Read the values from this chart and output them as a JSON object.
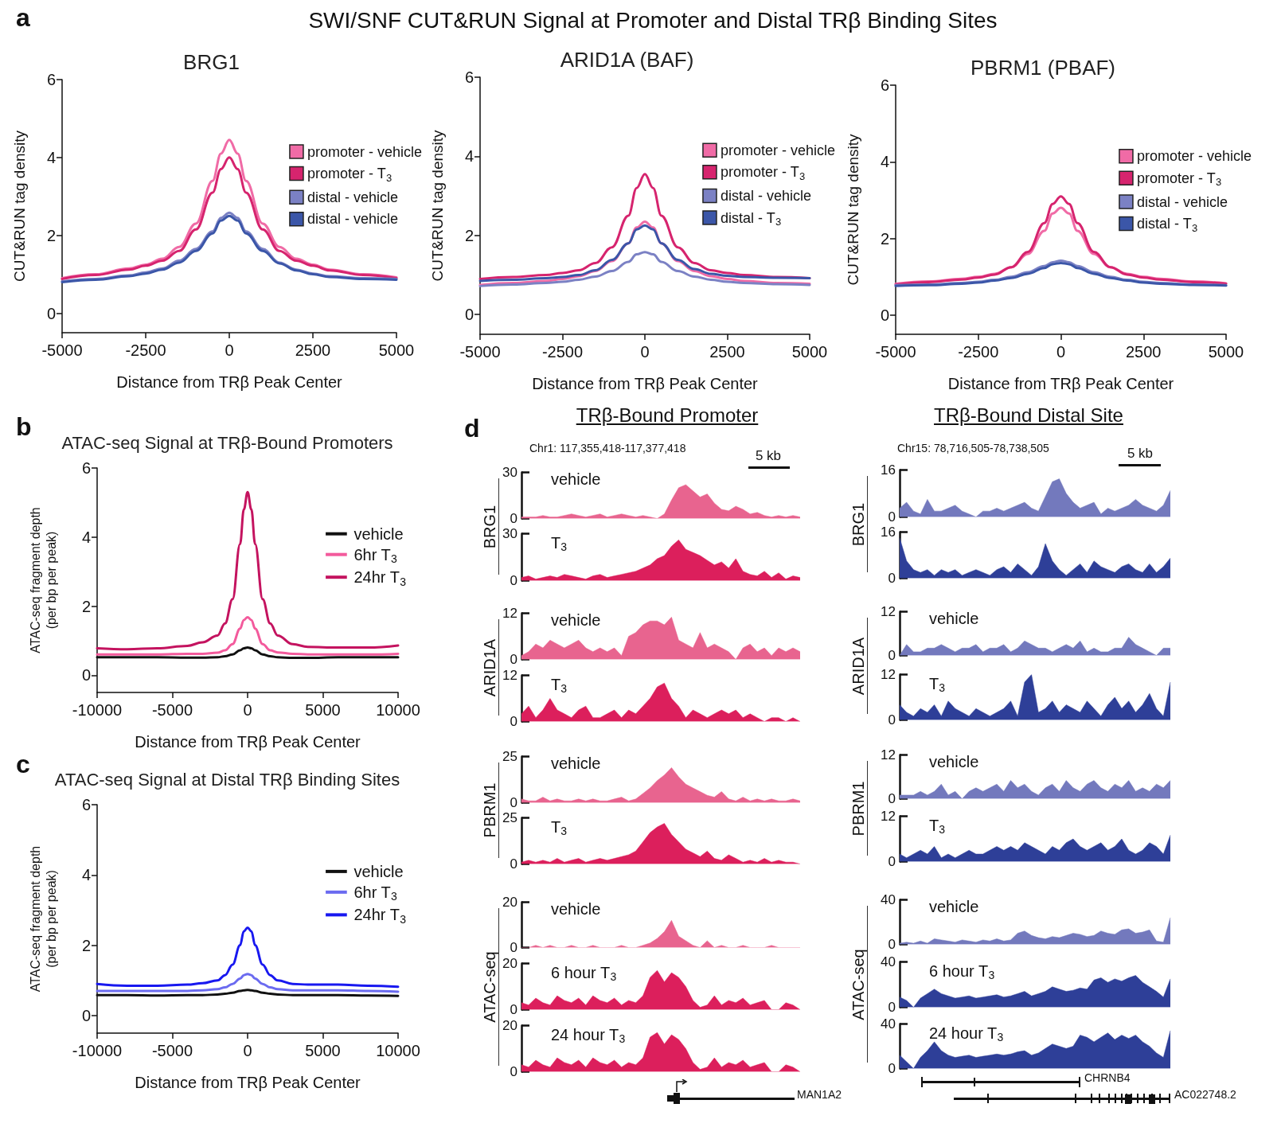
{
  "chart_data": [
    {
      "type": "line",
      "title": "BRG1",
      "xlabel": "Distance from TRβ Peak Center",
      "ylabel": "CUT&RUN tag density",
      "annotations": [
        "a",
        "SWI/SNF CUT&RUN Signal at Promoter and Distal TRβ Binding Sites"
      ],
      "legend": "right",
      "xlim": [
        -5000,
        5000
      ],
      "xticks": [
        -5000,
        -2500,
        0,
        2500,
        5000
      ],
      "ylim": [
        -0.5,
        6
      ],
      "yticks": [
        0,
        2,
        4,
        6
      ],
      "x": [
        -5000,
        -4000,
        -3000,
        -2500,
        -2000,
        -1500,
        -1000,
        -500,
        -250,
        0,
        250,
        500,
        1000,
        1500,
        2000,
        2500,
        3000,
        4000,
        5000
      ],
      "series": [
        {
          "name": "promoter - vehicle",
          "color": "#f06ba6",
          "values": [
            0.9,
            1.0,
            1.15,
            1.25,
            1.4,
            1.7,
            2.3,
            3.4,
            4.1,
            4.45,
            4.1,
            3.4,
            2.3,
            1.7,
            1.4,
            1.25,
            1.12,
            1.0,
            0.92
          ]
        },
        {
          "name": "promoter - T$_{3}$",
          "color": "#d6246e",
          "values": [
            0.88,
            0.98,
            1.12,
            1.22,
            1.35,
            1.6,
            2.15,
            3.1,
            3.7,
            4.0,
            3.7,
            3.1,
            2.15,
            1.6,
            1.35,
            1.22,
            1.1,
            0.98,
            0.9
          ]
        },
        {
          "name": "distal - vehicle",
          "color": "#7b81c4",
          "values": [
            0.82,
            0.88,
            0.97,
            1.05,
            1.15,
            1.35,
            1.65,
            2.1,
            2.45,
            2.58,
            2.45,
            2.1,
            1.65,
            1.3,
            1.12,
            1.02,
            0.95,
            0.9,
            0.88
          ]
        },
        {
          "name": "distal - vehicle",
          "color": "#3b56a8",
          "values": [
            0.8,
            0.86,
            0.95,
            1.02,
            1.12,
            1.3,
            1.6,
            2.05,
            2.38,
            2.5,
            2.38,
            2.05,
            1.6,
            1.28,
            1.1,
            1.0,
            0.93,
            0.88,
            0.86
          ]
        }
      ]
    },
    {
      "type": "line",
      "title": "ARID1A (BAF)",
      "xlabel": "Distance from TRβ Peak Center",
      "ylabel": "CUT&RUN tag density",
      "legend": "right",
      "xlim": [
        -5000,
        5000
      ],
      "xticks": [
        -5000,
        -2500,
        0,
        2500,
        5000
      ],
      "ylim": [
        -0.5,
        6
      ],
      "yticks": [
        0,
        2,
        4,
        6
      ],
      "x": [
        -5000,
        -4000,
        -3000,
        -2500,
        -2000,
        -1500,
        -1000,
        -500,
        -250,
        0,
        250,
        500,
        1000,
        1500,
        2000,
        2500,
        3000,
        4000,
        5000
      ],
      "series": [
        {
          "name": "promoter - vehicle",
          "color": "#f06ba6",
          "values": [
            0.75,
            0.8,
            0.85,
            0.9,
            0.97,
            1.1,
            1.35,
            1.8,
            2.2,
            2.35,
            2.2,
            1.8,
            1.35,
            1.1,
            0.97,
            0.9,
            0.85,
            0.8,
            0.78
          ]
        },
        {
          "name": "promoter - T$_{3}$",
          "color": "#d6246e",
          "values": [
            0.9,
            0.95,
            1.0,
            1.05,
            1.12,
            1.3,
            1.7,
            2.5,
            3.2,
            3.55,
            3.2,
            2.5,
            1.7,
            1.3,
            1.12,
            1.05,
            1.0,
            0.95,
            0.92
          ]
        },
        {
          "name": "distal - vehicle",
          "color": "#7b81c4",
          "values": [
            0.72,
            0.76,
            0.8,
            0.83,
            0.88,
            0.96,
            1.1,
            1.33,
            1.52,
            1.58,
            1.52,
            1.33,
            1.1,
            0.96,
            0.88,
            0.83,
            0.8,
            0.77,
            0.75
          ]
        },
        {
          "name": "distal - T$_{3}$",
          "color": "#3b56a8",
          "values": [
            0.85,
            0.88,
            0.92,
            0.95,
            1.0,
            1.12,
            1.38,
            1.8,
            2.15,
            2.25,
            2.15,
            1.8,
            1.38,
            1.15,
            1.03,
            0.98,
            0.95,
            0.93,
            0.92
          ]
        }
      ]
    },
    {
      "type": "line",
      "title": "PBRM1 (PBAF)",
      "xlabel": "Distance from TRβ Peak Center",
      "ylabel": "CUT&RUN tag density",
      "legend": "right",
      "xlim": [
        -5000,
        5000
      ],
      "xticks": [
        -5000,
        -2500,
        0,
        2500,
        5000
      ],
      "ylim": [
        -0.5,
        6
      ],
      "yticks": [
        0,
        2,
        4,
        6
      ],
      "x": [
        -5000,
        -4000,
        -3000,
        -2500,
        -2000,
        -1500,
        -1000,
        -500,
        -250,
        0,
        250,
        500,
        1000,
        1500,
        2000,
        2500,
        3000,
        4000,
        5000
      ],
      "series": [
        {
          "name": "promoter - vehicle",
          "color": "#f06ba6",
          "values": [
            0.82,
            0.88,
            0.95,
            1.0,
            1.08,
            1.25,
            1.6,
            2.2,
            2.65,
            2.8,
            2.65,
            2.2,
            1.6,
            1.25,
            1.08,
            1.0,
            0.95,
            0.88,
            0.83
          ]
        },
        {
          "name": "promoter - T$_{3}$",
          "color": "#d6246e",
          "values": [
            0.8,
            0.86,
            0.93,
            0.98,
            1.06,
            1.25,
            1.65,
            2.4,
            2.9,
            3.1,
            2.9,
            2.4,
            1.65,
            1.25,
            1.06,
            0.98,
            0.93,
            0.86,
            0.82
          ]
        },
        {
          "name": "distal - vehicle",
          "color": "#7b81c4",
          "values": [
            0.78,
            0.8,
            0.84,
            0.87,
            0.92,
            1.0,
            1.12,
            1.28,
            1.38,
            1.42,
            1.38,
            1.28,
            1.12,
            1.0,
            0.92,
            0.87,
            0.84,
            0.8,
            0.78
          ]
        },
        {
          "name": "distal - T$_{3}$",
          "color": "#3b56a8",
          "values": [
            0.76,
            0.78,
            0.82,
            0.85,
            0.9,
            0.97,
            1.08,
            1.23,
            1.33,
            1.36,
            1.33,
            1.23,
            1.08,
            0.97,
            0.9,
            0.85,
            0.82,
            0.79,
            0.77
          ]
        }
      ]
    },
    {
      "type": "line",
      "title": "ATAC-seq Signal at TRβ-Bound Promoters",
      "xlabel": "Distance from TRβ Peak Center",
      "ylabel": "ATAC-seq fragment depth\n(per bp per peak)",
      "annotations": [
        "b"
      ],
      "legend": "right",
      "xlim": [
        -10000,
        10000
      ],
      "xticks": [
        -10000,
        -5000,
        0,
        5000,
        10000
      ],
      "ylim": [
        -0.5,
        6
      ],
      "yticks": [
        0,
        2,
        4,
        6
      ],
      "x": [
        -10000,
        -8000,
        -6000,
        -4000,
        -3000,
        -2000,
        -1500,
        -1000,
        -500,
        -250,
        0,
        250,
        500,
        1000,
        1500,
        2000,
        3000,
        4000,
        6000,
        8000,
        10000
      ],
      "series": [
        {
          "name": "vehicle",
          "color": "#111111",
          "values": [
            0.52,
            0.52,
            0.52,
            0.51,
            0.51,
            0.52,
            0.55,
            0.6,
            0.72,
            0.78,
            0.8,
            0.78,
            0.72,
            0.6,
            0.55,
            0.52,
            0.5,
            0.5,
            0.52,
            0.52,
            0.52
          ]
        },
        {
          "name": "6hr T$_{3}$",
          "color": "#f35a9c",
          "values": [
            0.6,
            0.6,
            0.6,
            0.62,
            0.62,
            0.65,
            0.72,
            0.9,
            1.35,
            1.6,
            1.68,
            1.6,
            1.35,
            0.9,
            0.72,
            0.66,
            0.62,
            0.6,
            0.6,
            0.6,
            0.62
          ]
        },
        {
          "name": "24hr T$_{3}$",
          "color": "#c4135f",
          "values": [
            0.78,
            0.75,
            0.78,
            0.85,
            0.95,
            1.15,
            1.5,
            2.2,
            3.8,
            4.8,
            5.3,
            4.8,
            3.8,
            2.2,
            1.5,
            1.15,
            0.9,
            0.82,
            0.8,
            0.8,
            0.86
          ]
        }
      ]
    },
    {
      "type": "line",
      "title": "ATAC-seq Signal at Distal TRβ Binding Sites",
      "xlabel": "Distance from TRβ Peak Center",
      "ylabel": "ATAC-seq fragment depth\n(per bp per peak)",
      "annotations": [
        "c"
      ],
      "legend": "right",
      "xlim": [
        -10000,
        10000
      ],
      "xticks": [
        -10000,
        -5000,
        0,
        5000,
        10000
      ],
      "ylim": [
        -0.5,
        6
      ],
      "yticks": [
        0,
        2,
        4,
        6
      ],
      "x": [
        -10000,
        -8000,
        -6000,
        -4000,
        -3000,
        -2000,
        -1500,
        -1000,
        -500,
        -250,
        0,
        250,
        500,
        1000,
        1500,
        2000,
        3000,
        4000,
        6000,
        8000,
        10000
      ],
      "series": [
        {
          "name": "vehicle",
          "color": "#111111",
          "values": [
            0.58,
            0.58,
            0.57,
            0.58,
            0.58,
            0.6,
            0.62,
            0.65,
            0.7,
            0.72,
            0.73,
            0.72,
            0.7,
            0.65,
            0.62,
            0.6,
            0.58,
            0.58,
            0.58,
            0.57,
            0.56
          ]
        },
        {
          "name": "6hr T$_{3}$",
          "color": "#6b6bf0",
          "values": [
            0.7,
            0.7,
            0.7,
            0.7,
            0.72,
            0.75,
            0.8,
            0.9,
            1.05,
            1.15,
            1.18,
            1.15,
            1.05,
            0.9,
            0.8,
            0.75,
            0.72,
            0.72,
            0.72,
            0.7,
            0.68
          ]
        },
        {
          "name": "24hr T$_{3}$",
          "color": "#1818f0",
          "values": [
            0.9,
            0.85,
            0.85,
            0.88,
            0.92,
            1.0,
            1.15,
            1.45,
            2.0,
            2.4,
            2.5,
            2.4,
            2.0,
            1.45,
            1.15,
            1.0,
            0.9,
            0.88,
            0.88,
            0.85,
            0.82
          ]
        }
      ]
    },
    {
      "type": "area",
      "title": "vehicle",
      "ylabel": "BRG1",
      "annotations": [
        "d",
        "TRβ-Bound Promoter",
        "Chr1: 117,355,418-117,377,418",
        "5 kb"
      ],
      "color": "#e8648f",
      "ylim": [
        0,
        30
      ],
      "yticks": [
        0,
        30
      ],
      "categories": [
        null,
        null,
        null,
        null,
        null,
        null,
        null,
        null,
        null,
        null,
        null,
        null,
        null,
        null,
        null,
        null,
        null,
        null,
        null,
        null,
        null,
        null,
        null,
        null,
        null,
        null,
        null,
        null,
        null,
        null,
        null,
        null,
        null,
        null,
        null,
        null,
        null,
        null,
        null,
        null
      ],
      "values": [
        1,
        1,
        1,
        2,
        1,
        1,
        2,
        3,
        2,
        1,
        2,
        3,
        1,
        2,
        3,
        2,
        1,
        2,
        1,
        0,
        3,
        12,
        20,
        22,
        18,
        14,
        16,
        10,
        6,
        5,
        8,
        6,
        3,
        4,
        2,
        1,
        2,
        1,
        2,
        1
      ]
    },
    {
      "type": "area",
      "title": "T$_{3}$",
      "color": "#dc1f5c",
      "ylim": [
        0,
        30
      ],
      "yticks": [
        0,
        30
      ],
      "categories": [
        null,
        null,
        null,
        null,
        null,
        null,
        null,
        null,
        null,
        null,
        null,
        null,
        null,
        null,
        null,
        null,
        null,
        null,
        null,
        null,
        null,
        null,
        null,
        null,
        null,
        null,
        null,
        null,
        null,
        null,
        null,
        null,
        null,
        null,
        null,
        null,
        null,
        null,
        null,
        null
      ],
      "values": [
        2,
        3,
        1,
        2,
        3,
        2,
        4,
        3,
        2,
        1,
        3,
        4,
        2,
        3,
        4,
        5,
        6,
        8,
        10,
        14,
        16,
        22,
        26,
        20,
        18,
        16,
        13,
        10,
        12,
        8,
        14,
        6,
        4,
        3,
        6,
        2,
        5,
        1,
        3,
        2
      ]
    },
    {
      "type": "area",
      "title": "vehicle",
      "ylabel": "ARID1A",
      "color": "#e8648f",
      "ylim": [
        0,
        12
      ],
      "yticks": [
        0,
        12
      ],
      "categories": [
        null,
        null,
        null,
        null,
        null,
        null,
        null,
        null,
        null,
        null,
        null,
        null,
        null,
        null,
        null,
        null,
        null,
        null,
        null,
        null,
        null,
        null,
        null,
        null,
        null,
        null,
        null,
        null,
        null,
        null,
        null,
        null,
        null,
        null,
        null,
        null,
        null,
        null,
        null,
        null
      ],
      "values": [
        1,
        2,
        4,
        3,
        5,
        4,
        3,
        4,
        5,
        3,
        2,
        3,
        2,
        3,
        1,
        6,
        7,
        9,
        10,
        10,
        9,
        11,
        5,
        4,
        3,
        7,
        3,
        4,
        3,
        2,
        0,
        3,
        4,
        2,
        3,
        1,
        3,
        2,
        3,
        2
      ]
    },
    {
      "type": "area",
      "title": "T$_{3}$",
      "color": "#dc1f5c",
      "ylim": [
        0,
        12
      ],
      "yticks": [
        0,
        12
      ],
      "categories": [
        null,
        null,
        null,
        null,
        null,
        null,
        null,
        null,
        null,
        null,
        null,
        null,
        null,
        null,
        null,
        null,
        null,
        null,
        null,
        null,
        null,
        null,
        null,
        null,
        null,
        null,
        null,
        null,
        null,
        null,
        null,
        null,
        null,
        null,
        null,
        null,
        null,
        null,
        null,
        null
      ],
      "values": [
        2,
        4,
        1,
        3,
        6,
        3,
        2,
        1,
        3,
        4,
        1,
        1,
        2,
        3,
        1,
        3,
        2,
        4,
        6,
        9,
        10,
        6,
        4,
        1,
        3,
        2,
        1,
        2,
        3,
        2,
        3,
        1,
        2,
        1,
        0,
        1,
        1,
        0,
        1,
        0
      ]
    },
    {
      "type": "area",
      "title": "vehicle",
      "ylabel": "PBRM1",
      "color": "#e8648f",
      "ylim": [
        0,
        25
      ],
      "yticks": [
        0,
        25
      ],
      "categories": [
        null,
        null,
        null,
        null,
        null,
        null,
        null,
        null,
        null,
        null,
        null,
        null,
        null,
        null,
        null,
        null,
        null,
        null,
        null,
        null,
        null,
        null,
        null,
        null,
        null,
        null,
        null,
        null,
        null,
        null,
        null,
        null,
        null,
        null,
        null,
        null,
        null,
        null,
        null,
        null
      ],
      "values": [
        2,
        1,
        1,
        3,
        1,
        2,
        1,
        1,
        2,
        1,
        2,
        1,
        1,
        2,
        3,
        1,
        2,
        5,
        8,
        12,
        15,
        19,
        14,
        10,
        8,
        6,
        4,
        3,
        6,
        2,
        1,
        3,
        1,
        2,
        1,
        2,
        1,
        1,
        2,
        1
      ]
    },
    {
      "type": "area",
      "title": "T$_{3}$",
      "color": "#dc1f5c",
      "ylim": [
        0,
        25
      ],
      "yticks": [
        0,
        25
      ],
      "categories": [
        null,
        null,
        null,
        null,
        null,
        null,
        null,
        null,
        null,
        null,
        null,
        null,
        null,
        null,
        null,
        null,
        null,
        null,
        null,
        null,
        null,
        null,
        null,
        null,
        null,
        null,
        null,
        null,
        null,
        null,
        null,
        null,
        null,
        null,
        null,
        null,
        null,
        null,
        null,
        null
      ],
      "values": [
        1,
        2,
        1,
        2,
        1,
        3,
        1,
        2,
        3,
        1,
        2,
        3,
        2,
        3,
        4,
        5,
        7,
        12,
        17,
        20,
        22,
        16,
        12,
        8,
        6,
        4,
        7,
        3,
        2,
        5,
        3,
        1,
        2,
        1,
        3,
        1,
        2,
        1,
        1,
        0
      ]
    },
    {
      "type": "area",
      "title": "vehicle",
      "ylabel": "ATAC-seq",
      "color": "#e8648f",
      "ylim": [
        0,
        20
      ],
      "yticks": [
        0,
        20
      ],
      "categories": [
        null,
        null,
        null,
        null,
        null,
        null,
        null,
        null,
        null,
        null,
        null,
        null,
        null,
        null,
        null,
        null,
        null,
        null,
        null,
        null,
        null,
        null,
        null,
        null,
        null,
        null,
        null,
        null,
        null,
        null,
        null,
        null,
        null,
        null,
        null,
        null,
        null,
        null,
        null,
        null
      ],
      "values": [
        0,
        0,
        1,
        0,
        1,
        0,
        0,
        1,
        0,
        0,
        1,
        0,
        0,
        0,
        1,
        0,
        0,
        1,
        2,
        4,
        7,
        12,
        5,
        3,
        1,
        0,
        3,
        0,
        1,
        0,
        0,
        1,
        0,
        0,
        0,
        1,
        0,
        0,
        0,
        0
      ]
    },
    {
      "type": "area",
      "title": "6 hour T$_{3}$",
      "color": "#dc1f5c",
      "ylim": [
        0,
        20
      ],
      "yticks": [
        0,
        20
      ],
      "categories": [
        null,
        null,
        null,
        null,
        null,
        null,
        null,
        null,
        null,
        null,
        null,
        null,
        null,
        null,
        null,
        null,
        null,
        null,
        null,
        null,
        null,
        null,
        null,
        null,
        null,
        null,
        null,
        null,
        null,
        null,
        null,
        null,
        null,
        null,
        null,
        null,
        null,
        null,
        null,
        null
      ],
      "values": [
        3,
        2,
        5,
        3,
        2,
        6,
        4,
        3,
        5,
        2,
        6,
        4,
        3,
        5,
        2,
        4,
        3,
        6,
        14,
        17,
        12,
        16,
        14,
        10,
        4,
        1,
        2,
        6,
        2,
        4,
        3,
        5,
        2,
        3,
        4,
        0,
        0,
        3,
        2,
        0
      ]
    },
    {
      "type": "area",
      "title": "24 hour T$_{3}$",
      "annotations": [
        "MAN1A2"
      ],
      "color": "#dc1f5c",
      "ylim": [
        0,
        20
      ],
      "yticks": [
        0,
        20
      ],
      "categories": [
        null,
        null,
        null,
        null,
        null,
        null,
        null,
        null,
        null,
        null,
        null,
        null,
        null,
        null,
        null,
        null,
        null,
        null,
        null,
        null,
        null,
        null,
        null,
        null,
        null,
        null,
        null,
        null,
        null,
        null,
        null,
        null,
        null,
        null,
        null,
        null,
        null,
        null,
        null,
        null
      ],
      "values": [
        3,
        2,
        5,
        3,
        2,
        6,
        4,
        3,
        5,
        2,
        6,
        4,
        3,
        5,
        2,
        4,
        3,
        6,
        15,
        17,
        12,
        16,
        14,
        10,
        4,
        1,
        2,
        6,
        2,
        4,
        3,
        5,
        2,
        3,
        4,
        0,
        0,
        3,
        2,
        0
      ]
    },
    {
      "type": "area",
      "ylabel": "BRG1",
      "annotations": [
        "TRβ-Bound Distal Site",
        "Chr15: 78,716,505-78,738,505",
        "5 kb"
      ],
      "color": "#7379bd",
      "ylim": [
        0,
        16
      ],
      "yticks": [
        0,
        16
      ],
      "categories": [
        null,
        null,
        null,
        null,
        null,
        null,
        null,
        null,
        null,
        null,
        null,
        null,
        null,
        null,
        null,
        null,
        null,
        null,
        null,
        null,
        null,
        null,
        null,
        null,
        null,
        null,
        null,
        null,
        null,
        null,
        null,
        null,
        null,
        null,
        null,
        null,
        null,
        null,
        null,
        null
      ],
      "values": [
        3,
        5,
        2,
        1,
        6,
        2,
        2,
        3,
        4,
        2,
        1,
        0,
        2,
        2,
        3,
        2,
        3,
        4,
        5,
        3,
        2,
        7,
        12,
        13,
        8,
        5,
        3,
        4,
        5,
        1,
        3,
        2,
        3,
        4,
        6,
        4,
        3,
        2,
        4,
        9
      ]
    },
    {
      "type": "area",
      "color": "#2e3f98",
      "ylim": [
        0,
        16
      ],
      "yticks": [
        0,
        16
      ],
      "categories": [
        null,
        null,
        null,
        null,
        null,
        null,
        null,
        null,
        null,
        null,
        null,
        null,
        null,
        null,
        null,
        null,
        null,
        null,
        null,
        null,
        null,
        null,
        null,
        null,
        null,
        null,
        null,
        null,
        null,
        null,
        null,
        null,
        null,
        null,
        null,
        null,
        null,
        null,
        null,
        null
      ],
      "values": [
        14,
        6,
        3,
        2,
        3,
        1,
        3,
        2,
        3,
        1,
        2,
        3,
        2,
        1,
        3,
        4,
        2,
        5,
        3,
        1,
        4,
        12,
        6,
        3,
        1,
        3,
        5,
        2,
        6,
        4,
        3,
        2,
        4,
        5,
        3,
        2,
        5,
        2,
        4,
        7
      ]
    },
    {
      "type": "area",
      "title": "vehicle",
      "ylabel": "ARID1A",
      "color": "#7379bd",
      "ylim": [
        0,
        12
      ],
      "yticks": [
        0,
        12
      ],
      "categories": [
        null,
        null,
        null,
        null,
        null,
        null,
        null,
        null,
        null,
        null,
        null,
        null,
        null,
        null,
        null,
        null,
        null,
        null,
        null,
        null,
        null,
        null,
        null,
        null,
        null,
        null,
        null,
        null,
        null,
        null,
        null,
        null,
        null,
        null,
        null,
        null,
        null,
        null,
        null,
        null
      ],
      "values": [
        0,
        3,
        1,
        1,
        2,
        2,
        3,
        2,
        1,
        2,
        2,
        3,
        1,
        2,
        2,
        3,
        1,
        2,
        4,
        3,
        2,
        2,
        1,
        2,
        3,
        2,
        4,
        1,
        2,
        1,
        1,
        2,
        2,
        5,
        3,
        2,
        1,
        0,
        2,
        2
      ]
    },
    {
      "type": "area",
      "title": "T$_{3}$",
      "color": "#2e3f98",
      "ylim": [
        0,
        12
      ],
      "yticks": [
        0,
        12
      ],
      "categories": [
        null,
        null,
        null,
        null,
        null,
        null,
        null,
        null,
        null,
        null,
        null,
        null,
        null,
        null,
        null,
        null,
        null,
        null,
        null,
        null,
        null,
        null,
        null,
        null,
        null,
        null,
        null,
        null,
        null,
        null,
        null,
        null,
        null,
        null,
        null,
        null,
        null,
        null,
        null,
        null
      ],
      "values": [
        4,
        2,
        1,
        3,
        2,
        4,
        1,
        5,
        3,
        2,
        1,
        3,
        2,
        1,
        2,
        3,
        5,
        1,
        10,
        12,
        2,
        3,
        5,
        2,
        4,
        3,
        2,
        5,
        3,
        1,
        4,
        6,
        3,
        5,
        2,
        4,
        7,
        3,
        1,
        10
      ]
    },
    {
      "type": "area",
      "title": "vehicle",
      "ylabel": "PBRM1",
      "color": "#7379bd",
      "ylim": [
        0,
        12
      ],
      "yticks": [
        0,
        12
      ],
      "categories": [
        null,
        null,
        null,
        null,
        null,
        null,
        null,
        null,
        null,
        null,
        null,
        null,
        null,
        null,
        null,
        null,
        null,
        null,
        null,
        null,
        null,
        null,
        null,
        null,
        null,
        null,
        null,
        null,
        null,
        null,
        null,
        null,
        null,
        null,
        null,
        null,
        null,
        null,
        null,
        null
      ],
      "values": [
        1,
        1,
        1,
        2,
        1,
        2,
        4,
        1,
        2,
        0,
        2,
        3,
        2,
        3,
        4,
        2,
        5,
        3,
        4,
        2,
        1,
        3,
        4,
        2,
        5,
        3,
        2,
        4,
        5,
        3,
        2,
        4,
        3,
        5,
        2,
        3,
        2,
        4,
        3,
        5
      ]
    },
    {
      "type": "area",
      "title": "T$_{3}$",
      "color": "#2e3f98",
      "ylim": [
        0,
        12
      ],
      "yticks": [
        0,
        12
      ],
      "categories": [
        null,
        null,
        null,
        null,
        null,
        null,
        null,
        null,
        null,
        null,
        null,
        null,
        null,
        null,
        null,
        null,
        null,
        null,
        null,
        null,
        null,
        null,
        null,
        null,
        null,
        null,
        null,
        null,
        null,
        null,
        null,
        null,
        null,
        null,
        null,
        null,
        null,
        null,
        null,
        null
      ],
      "values": [
        2,
        1,
        2,
        3,
        2,
        4,
        1,
        2,
        1,
        2,
        3,
        2,
        2,
        3,
        4,
        3,
        4,
        3,
        5,
        4,
        3,
        2,
        4,
        3,
        5,
        6,
        4,
        3,
        4,
        5,
        3,
        4,
        6,
        3,
        2,
        3,
        5,
        4,
        2,
        7
      ]
    },
    {
      "type": "area",
      "title": "vehicle",
      "ylabel": "ATAC-seq",
      "color": "#7379bd",
      "ylim": [
        0,
        40
      ],
      "yticks": [
        0,
        40
      ],
      "categories": [
        null,
        null,
        null,
        null,
        null,
        null,
        null,
        null,
        null,
        null,
        null,
        null,
        null,
        null,
        null,
        null,
        null,
        null,
        null,
        null,
        null,
        null,
        null,
        null,
        null,
        null,
        null,
        null,
        null,
        null,
        null,
        null,
        null,
        null,
        null,
        null,
        null,
        null,
        null,
        null
      ],
      "values": [
        1,
        2,
        1,
        3,
        1,
        5,
        4,
        3,
        2,
        4,
        3,
        2,
        4,
        3,
        5,
        3,
        4,
        10,
        12,
        8,
        6,
        5,
        7,
        6,
        8,
        10,
        9,
        7,
        8,
        12,
        10,
        9,
        13,
        14,
        10,
        11,
        13,
        3,
        2,
        24
      ]
    },
    {
      "type": "area",
      "title": "6 hour T$_{3}$",
      "color": "#2e3f98",
      "ylim": [
        0,
        40
      ],
      "yticks": [
        0,
        40
      ],
      "categories": [
        null,
        null,
        null,
        null,
        null,
        null,
        null,
        null,
        null,
        null,
        null,
        null,
        null,
        null,
        null,
        null,
        null,
        null,
        null,
        null,
        null,
        null,
        null,
        null,
        null,
        null,
        null,
        null,
        null,
        null,
        null,
        null,
        null,
        null,
        null,
        null,
        null,
        null,
        null,
        null
      ],
      "values": [
        9,
        6,
        0,
        8,
        12,
        16,
        12,
        10,
        8,
        9,
        10,
        8,
        9,
        10,
        11,
        9,
        10,
        12,
        14,
        10,
        12,
        14,
        18,
        16,
        14,
        15,
        17,
        16,
        24,
        26,
        22,
        25,
        23,
        26,
        28,
        22,
        18,
        14,
        9,
        25
      ]
    },
    {
      "type": "area",
      "title": "24 hour T$_{3}$",
      "annotations": [
        "CHRNB4",
        "AC022748.2"
      ],
      "color": "#2e3f98",
      "ylim": [
        0,
        40
      ],
      "yticks": [
        0,
        40
      ],
      "categories": [
        null,
        null,
        null,
        null,
        null,
        null,
        null,
        null,
        null,
        null,
        null,
        null,
        null,
        null,
        null,
        null,
        null,
        null,
        null,
        null,
        null,
        null,
        null,
        null,
        null,
        null,
        null,
        null,
        null,
        null,
        null,
        null,
        null,
        null,
        null,
        null,
        null,
        null,
        null,
        null
      ],
      "values": [
        12,
        6,
        0,
        10,
        16,
        24,
        16,
        12,
        10,
        11,
        12,
        10,
        11,
        12,
        13,
        12,
        13,
        15,
        16,
        12,
        14,
        18,
        22,
        20,
        18,
        20,
        30,
        28,
        24,
        28,
        32,
        26,
        30,
        27,
        30,
        24,
        20,
        14,
        10,
        34
      ]
    }
  ]
}
